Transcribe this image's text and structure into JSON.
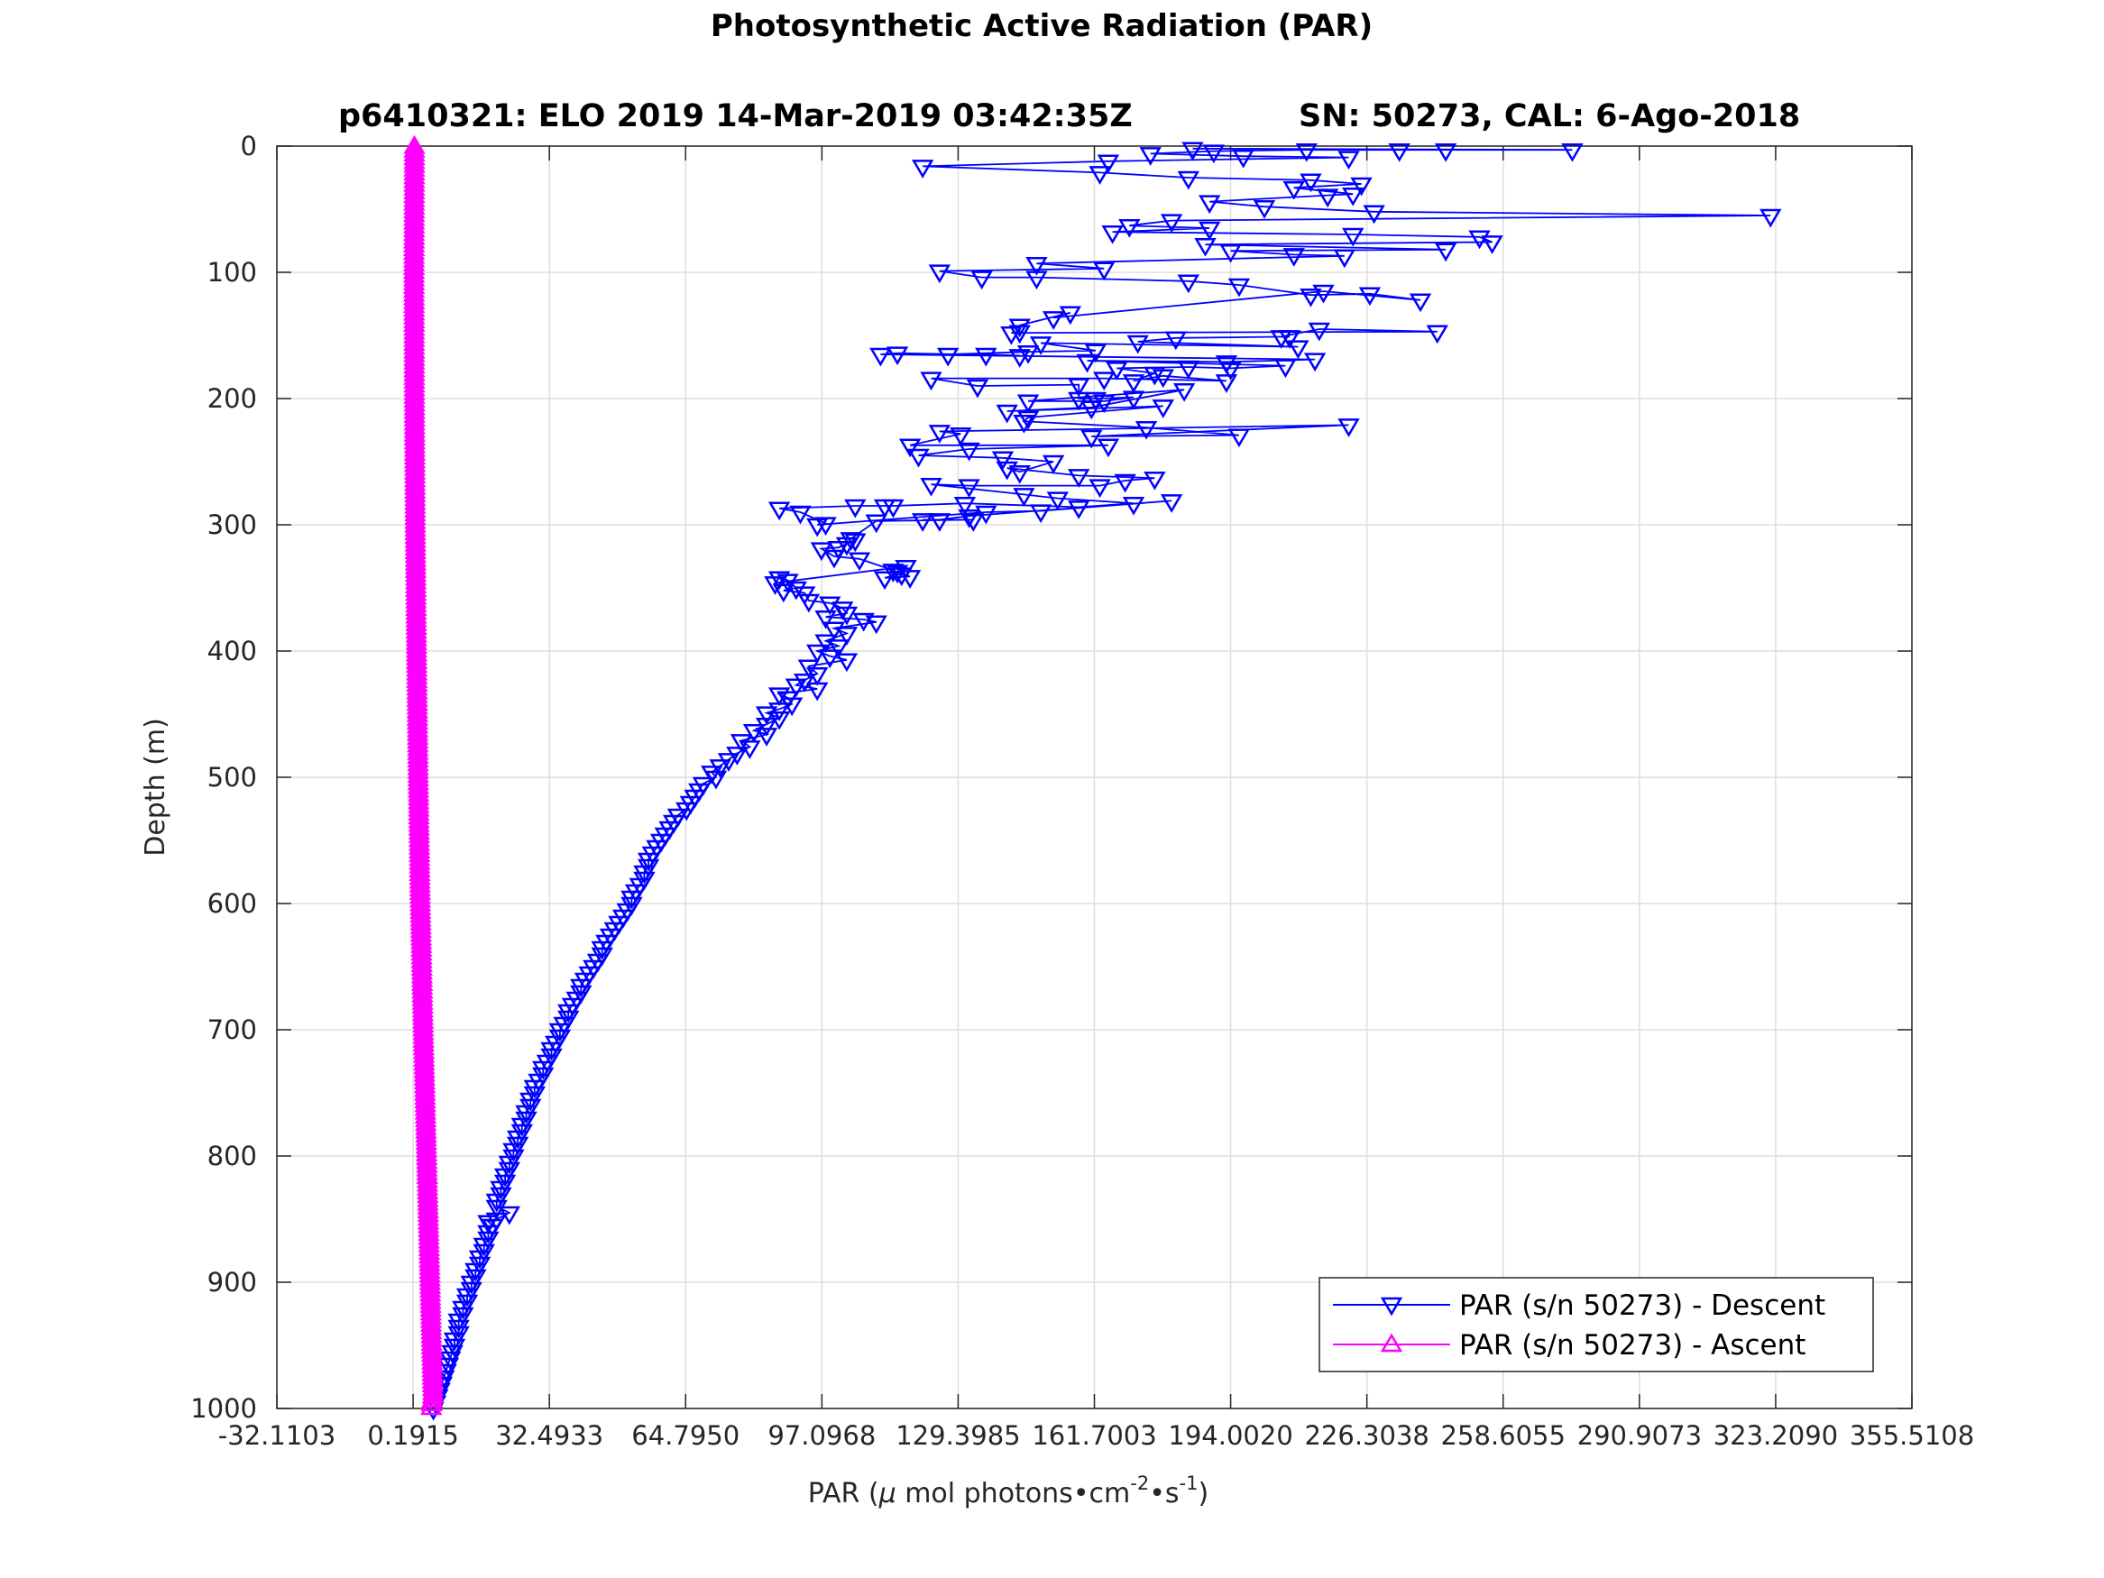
{
  "chart_data": {
    "type": "line",
    "title": "Photosynthetic Active Radiation (PAR)",
    "subtitle_left": "p6410321: ELO 2019 14-Mar-2019 03:42:35Z",
    "subtitle_right": "SN: 50273, CAL: 6-Ago-2018",
    "xlabel": {
      "prefix": "PAR (",
      "mu": "μ",
      "mid": " mol photons",
      "dot1": "•",
      "cm": "cm",
      "sup1": "-2",
      "dot2": "•",
      "s": "s",
      "sup2": "-1",
      "suffix": ")"
    },
    "ylabel": "Depth (m)",
    "xlim": [
      -32.1103,
      355.5108
    ],
    "ylim": [
      0,
      1000
    ],
    "y_reversed": true,
    "grid": true,
    "legend_position": "bottom-right",
    "xticks": [
      {
        "value": -32.1103,
        "label": "-32.1103"
      },
      {
        "value": 0.1915,
        "label": "0.1915"
      },
      {
        "value": 32.4933,
        "label": "32.4933"
      },
      {
        "value": 64.795,
        "label": "64.7950"
      },
      {
        "value": 97.0968,
        "label": "97.0968"
      },
      {
        "value": 129.3985,
        "label": "129.3985"
      },
      {
        "value": 161.7003,
        "label": "161.7003"
      },
      {
        "value": 194.002,
        "label": "194.0020"
      },
      {
        "value": 226.3038,
        "label": "226.3038"
      },
      {
        "value": 258.6055,
        "label": "258.6055"
      },
      {
        "value": 290.9073,
        "label": "290.9073"
      },
      {
        "value": 323.209,
        "label": "323.2090"
      },
      {
        "value": 355.5108,
        "label": "355.5108"
      }
    ],
    "yticks": [
      {
        "value": 0,
        "label": "0"
      },
      {
        "value": 100,
        "label": "100"
      },
      {
        "value": 200,
        "label": "200"
      },
      {
        "value": 300,
        "label": "300"
      },
      {
        "value": 400,
        "label": "400"
      },
      {
        "value": 500,
        "label": "500"
      },
      {
        "value": 600,
        "label": "600"
      },
      {
        "value": 700,
        "label": "700"
      },
      {
        "value": 800,
        "label": "800"
      },
      {
        "value": 900,
        "label": "900"
      },
      {
        "value": 1000,
        "label": "1000"
      }
    ],
    "series": [
      {
        "name": "PAR (s/n 50273) - Descent",
        "color": "#0000ff",
        "marker": "triangle-down",
        "points": [
          [
            185,
            2
          ],
          [
            275,
            3
          ],
          [
            245,
            3
          ],
          [
            234,
            3
          ],
          [
            212,
            3
          ],
          [
            190,
            4
          ],
          [
            175,
            6
          ],
          [
            197,
            8
          ],
          [
            222,
            9
          ],
          [
            165,
            12
          ],
          [
            121,
            16
          ],
          [
            163,
            21
          ],
          [
            184,
            25
          ],
          [
            213,
            27
          ],
          [
            225,
            30
          ],
          [
            209,
            33
          ],
          [
            223,
            38
          ],
          [
            217,
            39
          ],
          [
            189,
            44
          ],
          [
            202,
            48
          ],
          [
            228,
            52
          ],
          [
            322,
            55
          ],
          [
            180,
            59
          ],
          [
            170,
            63
          ],
          [
            189,
            65
          ],
          [
            166,
            68
          ],
          [
            223,
            70
          ],
          [
            253,
            72
          ],
          [
            256,
            76
          ],
          [
            188,
            78
          ],
          [
            245,
            82
          ],
          [
            194,
            83
          ],
          [
            209,
            86
          ],
          [
            221,
            87
          ],
          [
            148,
            93
          ],
          [
            164,
            97
          ],
          [
            125,
            99
          ],
          [
            135,
            104
          ],
          [
            148,
            104
          ],
          [
            184,
            107
          ],
          [
            196,
            110
          ],
          [
            213,
            118
          ],
          [
            227,
            117
          ],
          [
            239,
            122
          ],
          [
            216,
            115
          ],
          [
            152,
            136
          ],
          [
            156,
            132
          ],
          [
            144,
            142
          ],
          [
            144,
            147
          ],
          [
            142,
            148
          ],
          [
            243,
            147
          ],
          [
            215,
            145
          ],
          [
            206,
            151
          ],
          [
            208,
            151
          ],
          [
            181,
            152
          ],
          [
            172,
            155
          ],
          [
            210,
            159
          ],
          [
            149,
            156
          ],
          [
            162,
            162
          ],
          [
            146,
            163
          ],
          [
            127,
            165
          ],
          [
            136,
            165
          ],
          [
            144,
            166
          ],
          [
            115,
            164
          ],
          [
            111,
            165
          ],
          [
            214,
            169
          ],
          [
            193,
            171
          ],
          [
            160,
            170
          ],
          [
            207,
            174
          ],
          [
            194,
            176
          ],
          [
            184,
            175
          ],
          [
            167,
            176
          ],
          [
            176,
            180
          ],
          [
            171,
            186
          ],
          [
            178,
            182
          ],
          [
            193,
            186
          ],
          [
            164,
            184
          ],
          [
            123,
            184
          ],
          [
            134,
            190
          ],
          [
            158,
            189
          ],
          [
            158,
            200
          ],
          [
            162,
            200
          ],
          [
            171,
            199
          ],
          [
            164,
            202
          ],
          [
            146,
            202
          ],
          [
            183,
            193
          ],
          [
            161,
            207
          ],
          [
            141,
            210
          ],
          [
            178,
            206
          ],
          [
            146,
            215
          ],
          [
            145,
            218
          ],
          [
            174,
            223
          ],
          [
            196,
            229
          ],
          [
            161,
            230
          ],
          [
            222,
            221
          ],
          [
            125,
            226
          ],
          [
            130,
            228
          ],
          [
            118,
            237
          ],
          [
            165,
            237
          ],
          [
            132,
            240
          ],
          [
            120,
            245
          ],
          [
            140,
            247
          ],
          [
            152,
            250
          ],
          [
            144,
            258
          ],
          [
            141,
            255
          ],
          [
            158,
            261
          ],
          [
            176,
            263
          ],
          [
            169,
            265
          ],
          [
            163,
            269
          ],
          [
            132,
            269
          ],
          [
            123,
            268
          ],
          [
            145,
            276
          ],
          [
            153,
            279
          ],
          [
            171,
            283
          ],
          [
            158,
            286
          ],
          [
            131,
            283
          ],
          [
            114,
            285
          ],
          [
            112,
            285
          ],
          [
            105,
            285
          ],
          [
            87,
            287
          ],
          [
            92,
            290
          ],
          [
            98,
            299
          ],
          [
            96,
            300
          ],
          [
            136,
            290
          ],
          [
            149,
            289
          ],
          [
            180,
            281
          ],
          [
            132,
            293
          ],
          [
            125,
            296
          ],
          [
            121,
            296
          ],
          [
            133,
            296
          ],
          [
            110,
            297
          ],
          [
            104,
            311
          ],
          [
            105,
            312
          ],
          [
            103,
            315
          ],
          [
            101,
            318
          ],
          [
            97,
            319
          ],
          [
            100,
            325
          ],
          [
            106,
            327
          ],
          [
            114,
            336
          ],
          [
            116,
            339
          ],
          [
            112,
            342
          ],
          [
            118,
            341
          ],
          [
            115,
            337
          ],
          [
            117,
            333
          ],
          [
            86,
            346
          ],
          [
            87,
            342
          ],
          [
            89,
            344
          ],
          [
            91,
            350
          ],
          [
            88,
            352
          ],
          [
            93,
            354
          ],
          [
            94,
            360
          ],
          [
            99,
            362
          ],
          [
            102,
            366
          ],
          [
            103,
            370
          ],
          [
            98,
            373
          ],
          [
            107,
            375
          ],
          [
            110,
            377
          ],
          [
            100,
            382
          ],
          [
            103,
            386
          ],
          [
            98,
            392
          ],
          [
            101,
            396
          ],
          [
            96,
            400
          ],
          [
            99,
            404
          ],
          [
            103,
            407
          ],
          [
            94,
            412
          ],
          [
            96,
            418
          ],
          [
            93,
            423
          ],
          [
            91,
            427
          ],
          [
            96,
            430
          ],
          [
            87,
            434
          ],
          [
            89,
            437
          ],
          [
            90,
            442
          ],
          [
            87,
            446
          ],
          [
            84,
            449
          ],
          [
            87,
            453
          ],
          [
            84,
            458
          ],
          [
            81,
            463
          ],
          [
            84,
            466
          ],
          [
            78,
            471
          ],
          [
            80,
            476
          ],
          [
            77,
            481
          ],
          [
            75,
            486
          ],
          [
            73,
            491
          ],
          [
            71,
            496
          ],
          [
            72,
            500
          ],
          [
            69,
            505
          ],
          [
            68,
            510
          ],
          [
            67,
            515
          ],
          [
            66,
            520
          ],
          [
            65,
            525
          ],
          [
            63,
            530
          ],
          [
            62,
            535
          ],
          [
            61,
            540
          ],
          [
            60,
            545
          ],
          [
            59,
            550
          ],
          [
            58,
            555
          ],
          [
            57,
            560
          ],
          [
            56,
            565
          ],
          [
            56,
            570
          ],
          [
            55,
            575
          ],
          [
            55,
            580
          ],
          [
            54,
            585
          ],
          [
            53,
            590
          ],
          [
            52,
            595
          ],
          [
            52,
            600
          ],
          [
            51,
            605
          ],
          [
            50,
            610
          ],
          [
            49,
            615
          ],
          [
            48,
            620
          ],
          [
            47,
            625
          ],
          [
            46,
            630
          ],
          [
            45,
            635
          ],
          [
            45,
            640
          ],
          [
            44,
            645
          ],
          [
            43,
            650
          ],
          [
            42,
            655
          ],
          [
            41,
            660
          ],
          [
            40,
            665
          ],
          [
            40,
            670
          ],
          [
            39,
            675
          ],
          [
            38,
            680
          ],
          [
            37,
            685
          ],
          [
            37,
            690
          ],
          [
            36,
            695
          ],
          [
            35,
            700
          ],
          [
            35,
            705
          ],
          [
            34,
            710
          ],
          [
            33,
            715
          ],
          [
            33,
            720
          ],
          [
            32,
            725
          ],
          [
            31,
            730
          ],
          [
            31,
            735
          ],
          [
            30,
            740
          ],
          [
            29,
            745
          ],
          [
            29,
            750
          ],
          [
            28,
            755
          ],
          [
            28,
            760
          ],
          [
            27,
            765
          ],
          [
            27,
            770
          ],
          [
            26,
            775
          ],
          [
            26,
            780
          ],
          [
            25,
            785
          ],
          [
            25,
            790
          ],
          [
            24,
            795
          ],
          [
            24,
            800
          ],
          [
            23,
            805
          ],
          [
            23,
            810
          ],
          [
            22,
            815
          ],
          [
            22,
            820
          ],
          [
            21,
            825
          ],
          [
            21,
            830
          ],
          [
            20,
            835
          ],
          [
            20,
            840
          ],
          [
            23,
            845
          ],
          [
            20,
            850
          ],
          [
            18,
            852
          ],
          [
            19,
            855
          ],
          [
            18,
            860
          ],
          [
            18,
            865
          ],
          [
            17,
            870
          ],
          [
            17,
            875
          ],
          [
            16,
            880
          ],
          [
            16,
            885
          ],
          [
            15,
            890
          ],
          [
            15,
            895
          ],
          [
            14,
            900
          ],
          [
            14,
            905
          ],
          [
            13,
            910
          ],
          [
            13,
            915
          ],
          [
            12,
            920
          ],
          [
            12,
            925
          ],
          [
            11,
            930
          ],
          [
            11,
            935
          ],
          [
            11,
            940
          ],
          [
            10,
            945
          ],
          [
            10,
            950
          ],
          [
            9.5,
            955
          ],
          [
            9,
            960
          ],
          [
            8.5,
            965
          ],
          [
            8,
            970
          ],
          [
            7.5,
            975
          ],
          [
            7,
            980
          ],
          [
            6.5,
            985
          ],
          [
            6,
            990
          ],
          [
            5.5,
            995
          ],
          [
            5,
            1000
          ]
        ]
      },
      {
        "name": "PAR (s/n 50273) - Ascent",
        "color": "#ff00ff",
        "marker": "triangle-up",
        "profile": [
          [
            0.5,
            0
          ],
          [
            0.4,
            100
          ],
          [
            0.5,
            200
          ],
          [
            0.7,
            300
          ],
          [
            1.0,
            400
          ],
          [
            1.4,
            500
          ],
          [
            1.9,
            600
          ],
          [
            2.6,
            700
          ],
          [
            3.4,
            800
          ],
          [
            4.2,
            900
          ],
          [
            4.9,
            990
          ],
          [
            4.5,
            1000
          ]
        ],
        "sample_interval_m": 3
      }
    ]
  }
}
